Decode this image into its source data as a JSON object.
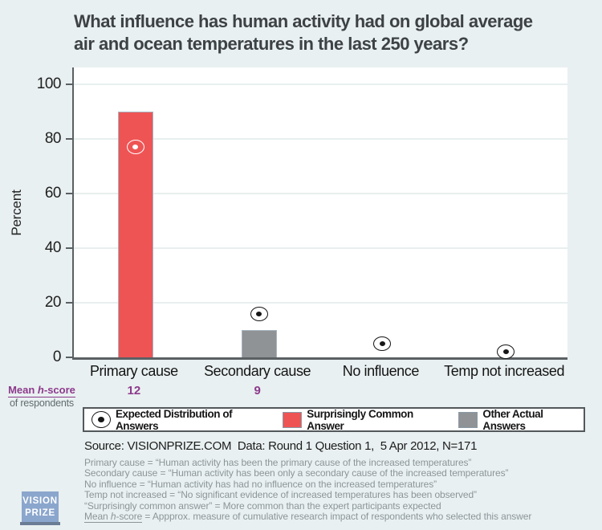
{
  "title": "What influence has human activity had on global average\nair and ocean temperatures in the last 250 years?",
  "chart_data": {
    "type": "bar",
    "title": "What influence has human activity had on global average air and ocean temperatures in the last 250 years?",
    "xlabel": "",
    "ylabel": "Percent",
    "ylim": [
      0,
      100
    ],
    "yticks": [
      0,
      20,
      40,
      60,
      80,
      100
    ],
    "grid": true,
    "legend_position": "bottom",
    "categories": [
      "Primary cause",
      "Secondary cause",
      "No influence",
      "Temp not increased"
    ],
    "series": [
      {
        "name": "Actual Answers",
        "values": [
          90,
          10,
          0,
          0
        ]
      },
      {
        "name": "Expected Distribution of Answers",
        "values": [
          77,
          16,
          5,
          2
        ]
      }
    ],
    "surprisingly_common_index": 0,
    "mean_h_scores": [
      "12",
      "9",
      "",
      ""
    ]
  },
  "hscore_caption": {
    "pre": "Mean ",
    "italic": "h",
    "post": "-score",
    "sub": "of respondents"
  },
  "legend": {
    "items": [
      {
        "icon": "circle-dot-marker-icon",
        "label": "Expected Distribution of Answers"
      },
      {
        "icon": "red-square-swatch",
        "label": "Surprisingly Common Answer"
      },
      {
        "icon": "gray-square-swatch",
        "label": "Other Actual Answers"
      }
    ]
  },
  "source": "Source: VISIONPRIZE.COM  Data: Round 1 Question 1,  5 Apr 2012, N=171",
  "footnotes": [
    "Primary cause = “Human activity has been the primary cause of the increased temperatures”",
    "Secondary cause = “Human activity has been only a secondary cause of the increased temperatures”",
    "No influence = “Human activity has had no influence on the increased temperatures”",
    "Temp not increased = “No significant evidence of increased temperatures has been observed”",
    "“Surprisingly common answer” = More common than the expert participants expected"
  ],
  "footnote_hscore": {
    "pre": "Mean ",
    "italic": "h",
    "post": "-score",
    "rest": " = Appprox. measure of cumulative research impact of respondents who selected this answer"
  },
  "logo": {
    "line1": "VISION",
    "line2": "PRIZE"
  },
  "colors": {
    "background": "#e9f0f1",
    "plot_background": "#ffffff",
    "bar_red": "#ef5455",
    "bar_gray": "#8f9396",
    "bar_border": "#a6b4bf",
    "gridline": "#e8efef",
    "axis": "#5b6063",
    "purple": "#8c3a8c",
    "footnote_gray": "#8b9598",
    "logo_blue": "#8ba6cd"
  }
}
